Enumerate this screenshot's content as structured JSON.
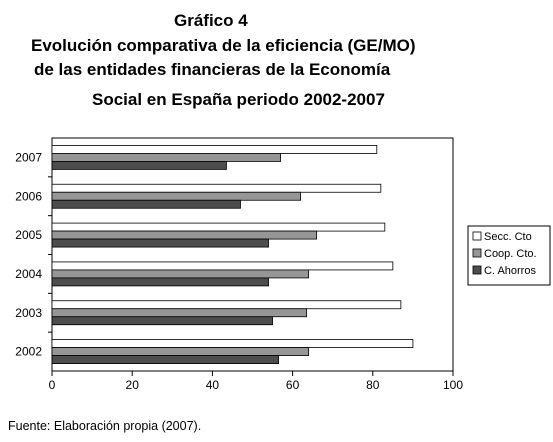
{
  "title_lines": [
    "Gráfico 4",
    "Evolución comparativa de la eficiencia (GE/MO)",
    "de las entidades financieras de la Economía",
    "Social en España periodo 2002-2007"
  ],
  "source": "Fuente: Elaboración propia (2007).",
  "chart_data": {
    "type": "bar",
    "orientation": "horizontal",
    "categories": [
      "2007",
      "2006",
      "2005",
      "2004",
      "2003",
      "2002"
    ],
    "series": [
      {
        "name": "Secc. Cto",
        "color": "#ffffff",
        "values": [
          81,
          82,
          83,
          85,
          87,
          90
        ]
      },
      {
        "name": "Coop. Cto.",
        "color": "#969696",
        "values": [
          57,
          62,
          66,
          64,
          63.5,
          64
        ]
      },
      {
        "name": "C. Ahorros",
        "color": "#4d4d4d",
        "values": [
          43.5,
          47,
          54,
          54,
          55,
          56.5
        ]
      }
    ],
    "xlim": [
      0,
      100
    ],
    "xticks": [
      "0",
      "20",
      "40",
      "60",
      "80",
      "100"
    ],
    "grid": false,
    "legend_position": "right"
  }
}
